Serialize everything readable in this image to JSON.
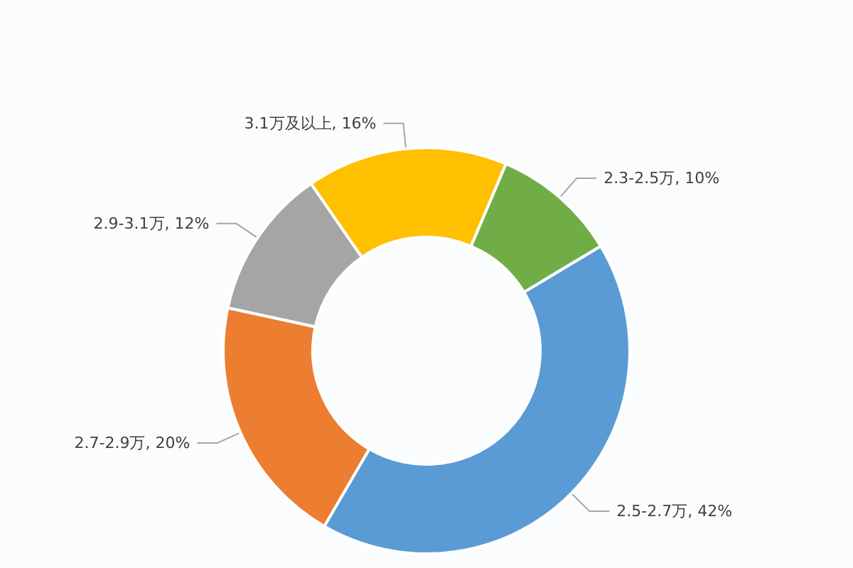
{
  "chart_data": {
    "type": "donut",
    "categories": [
      "2.3-2.5万",
      "2.5-2.7万",
      "2.7-2.9万",
      "2.9-3.1万",
      "3.1万及以上"
    ],
    "values": [
      10,
      42,
      20,
      12,
      16
    ],
    "colors": [
      "#70ad47",
      "#5b9bd5",
      "#ed7d31",
      "#a5a5a5",
      "#ffc000"
    ],
    "value_labels": [
      "10%",
      "42%",
      "20%",
      "12%",
      "16%"
    ],
    "legend": false
  }
}
